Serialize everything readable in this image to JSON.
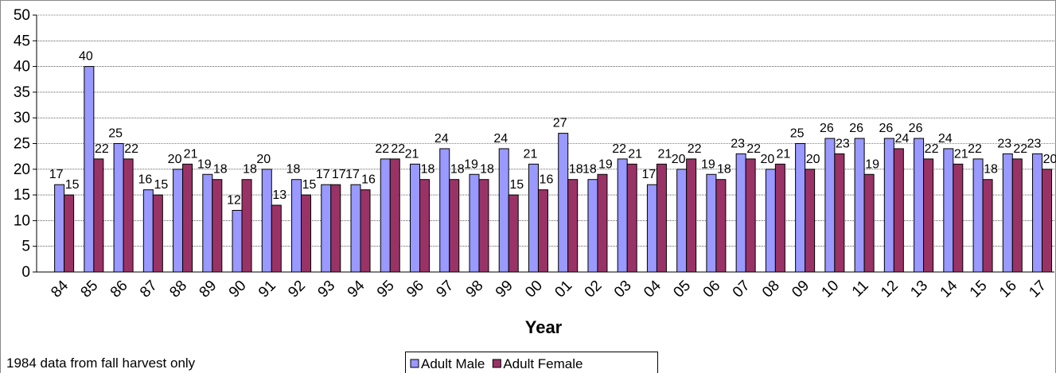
{
  "chart_data": {
    "type": "bar",
    "x_label": "Year",
    "note": "1984 data from fall harvest only",
    "categories": [
      "84",
      "85",
      "86",
      "87",
      "88",
      "89",
      "90",
      "91",
      "92",
      "93",
      "94",
      "95",
      "96",
      "97",
      "98",
      "99",
      "00",
      "01",
      "02",
      "03",
      "04",
      "05",
      "06",
      "07",
      "08",
      "09",
      "10",
      "11",
      "12",
      "13",
      "14",
      "15",
      "16",
      "17"
    ],
    "series": [
      {
        "name": "Adult Male",
        "color": "#9999ff",
        "values": [
          17,
          40,
          25,
          16,
          20,
          19,
          12,
          20,
          18,
          17,
          17,
          22,
          21,
          24,
          19,
          24,
          21,
          27,
          18,
          22,
          17,
          20,
          19,
          23,
          20,
          25,
          26,
          26,
          26,
          26,
          24,
          22,
          23,
          23
        ]
      },
      {
        "name": "Adult Female",
        "color": "#993366",
        "values": [
          15,
          22,
          22,
          15,
          21,
          18,
          18,
          13,
          15,
          17,
          16,
          22,
          18,
          18,
          18,
          15,
          16,
          18,
          19,
          21,
          21,
          22,
          18,
          22,
          21,
          20,
          23,
          19,
          24,
          22,
          21,
          18,
          22,
          20
        ]
      }
    ],
    "ylim": [
      0,
      50
    ],
    "yticks": [
      0,
      5,
      10,
      15,
      20,
      25,
      30,
      35,
      40,
      45,
      50
    ],
    "grid": true,
    "legend": "bottom"
  }
}
